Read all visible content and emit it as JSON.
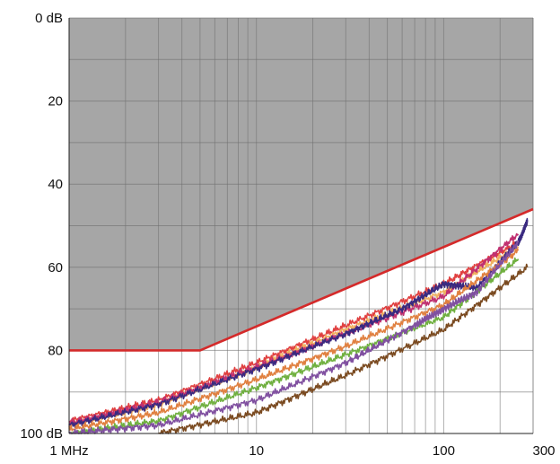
{
  "chart_data": {
    "type": "line",
    "title": "",
    "xlabel": "",
    "ylabel": "",
    "x_scale": "log",
    "xlim": [
      1,
      300
    ],
    "ylim": [
      0,
      100
    ],
    "y_inverted": true,
    "grid": true,
    "x_ticks": [
      {
        "value": 1,
        "label": "1 MHz"
      },
      {
        "value": 10,
        "label": "10"
      },
      {
        "value": 100,
        "label": "100"
      },
      {
        "value": 300,
        "label": "300"
      }
    ],
    "y_ticks": [
      {
        "value": 0,
        "label": "0 dB"
      },
      {
        "value": 20,
        "label": "20"
      },
      {
        "value": 40,
        "label": "40"
      },
      {
        "value": 60,
        "label": "60"
      },
      {
        "value": 80,
        "label": "80"
      },
      {
        "value": 100,
        "label": "100 dB"
      }
    ],
    "limit_line": {
      "color": "#d42a2a",
      "x": [
        1,
        5,
        300
      ],
      "y": [
        80,
        80,
        46
      ]
    },
    "series": [
      {
        "color": "#e04040",
        "x": [
          1,
          3,
          10,
          30,
          100,
          250
        ],
        "y": [
          97,
          92,
          83,
          74,
          64,
          54
        ]
      },
      {
        "color": "#f0b060",
        "x": [
          1,
          3,
          10,
          30,
          100,
          250
        ],
        "y": [
          98,
          93,
          84,
          75,
          66,
          55
        ]
      },
      {
        "color": "#c03070",
        "x": [
          1,
          3,
          10,
          30,
          100,
          250
        ],
        "y": [
          97.5,
          92.5,
          84,
          76,
          67,
          52
        ]
      },
      {
        "color": "#3a2a80",
        "x": [
          1,
          3,
          10,
          30,
          60,
          100,
          150,
          250,
          280
        ],
        "y": [
          98,
          93,
          84.5,
          76,
          70,
          64,
          65,
          54,
          49
        ]
      },
      {
        "color": "#e08040",
        "x": [
          1,
          3,
          10,
          30,
          100,
          250
        ],
        "y": [
          99,
          95,
          87,
          79,
          69,
          56
        ]
      },
      {
        "color": "#70b040",
        "x": [
          1,
          3,
          10,
          30,
          100,
          250
        ],
        "y": [
          100,
          97,
          89,
          81,
          72,
          58
        ]
      },
      {
        "color": "#8050a0",
        "x": [
          1,
          3,
          10,
          30,
          70,
          100,
          150,
          250
        ],
        "y": [
          100,
          98,
          92,
          83,
          74,
          70,
          66,
          54
        ]
      },
      {
        "color": "#7a4a20",
        "x": [
          3,
          10,
          30,
          100,
          280
        ],
        "y": [
          100,
          95,
          86,
          75,
          60
        ]
      }
    ]
  }
}
